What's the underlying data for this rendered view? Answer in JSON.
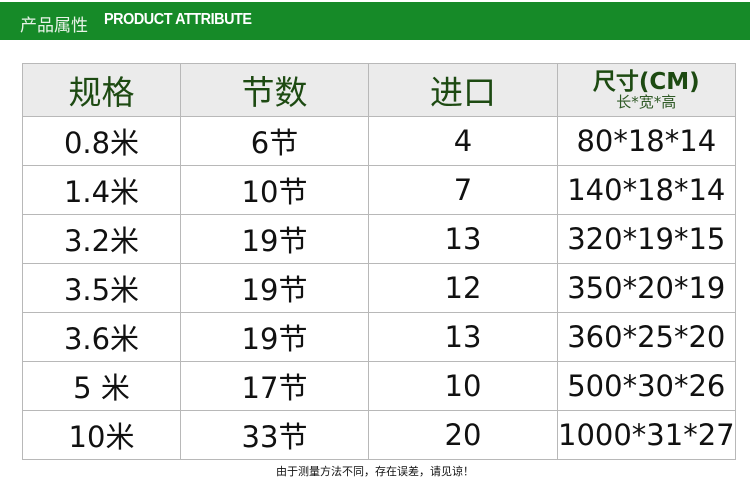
{
  "banner": {
    "title_cn": "产品属性",
    "title_en": "PRODUCT ATTRIBUTE",
    "color": "#168a28"
  },
  "table": {
    "headers": [
      "规格",
      "节数",
      "进口",
      "尺寸(CM)"
    ],
    "size_subheader": "长*宽*高",
    "rows": [
      [
        "0.8米",
        "6节",
        "4",
        "80*18*14"
      ],
      [
        "1.4米",
        "10节",
        "7",
        "140*18*14"
      ],
      [
        "3.2米",
        "19节",
        "13",
        "320*19*15"
      ],
      [
        "3.5米",
        "19节",
        "12",
        "350*20*19"
      ],
      [
        "3.6米",
        "19节",
        "13",
        "360*25*20"
      ],
      [
        "5 米",
        "17节",
        "10",
        "500*30*26"
      ],
      [
        "10米",
        "33节",
        "20",
        "1000*31*27"
      ]
    ]
  },
  "footnote": "由于测量方法不同，存在误差，请见谅！"
}
